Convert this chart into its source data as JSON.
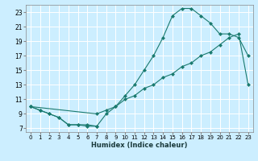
{
  "xlabel": "Humidex (Indice chaleur)",
  "bg_color": "#cceeff",
  "grid_color": "#ffffff",
  "line_color": "#1a7a6e",
  "xlim": [
    -0.5,
    23.5
  ],
  "ylim": [
    6.5,
    24
  ],
  "xticks": [
    0,
    1,
    2,
    3,
    4,
    5,
    6,
    7,
    8,
    9,
    10,
    11,
    12,
    13,
    14,
    15,
    16,
    17,
    18,
    19,
    20,
    21,
    22,
    23
  ],
  "yticks": [
    7,
    9,
    11,
    13,
    15,
    17,
    19,
    21,
    23
  ],
  "curve1_x": [
    0,
    1,
    2,
    3,
    4,
    5,
    6,
    7
  ],
  "curve1_y": [
    10,
    9.5,
    9,
    8.5,
    7.5,
    7.5,
    7.5,
    7.3
  ],
  "curve2_x": [
    0,
    1,
    2,
    3,
    4,
    5,
    6,
    7,
    8,
    9,
    10,
    11,
    12,
    13,
    14,
    15,
    16,
    17,
    18,
    19,
    20,
    21,
    22,
    23
  ],
  "curve2_y": [
    10,
    9.5,
    9,
    8.5,
    7.5,
    7.5,
    7.3,
    7.3,
    9,
    10,
    11.5,
    13,
    15,
    17,
    19.5,
    22.5,
    23.5,
    23.5,
    22.5,
    21.5,
    20,
    20,
    19.5,
    17
  ],
  "curve3_x": [
    0,
    7,
    8,
    9,
    10,
    11,
    12,
    13,
    14,
    15,
    16,
    17,
    18,
    19,
    20,
    21,
    22,
    23
  ],
  "curve3_y": [
    10,
    9,
    9.5,
    10,
    11,
    11.5,
    12.5,
    13,
    14,
    14.5,
    15.5,
    16,
    17,
    17.5,
    18.5,
    19.5,
    20,
    13
  ]
}
